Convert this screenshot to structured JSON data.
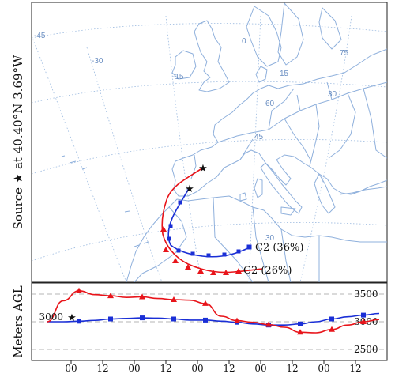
{
  "map": {
    "source_label": "Source ★ at 40.40°N 3.69°W",
    "graticule_labels": [
      "-45",
      "-30",
      "-15",
      "0",
      "15",
      "30",
      "75",
      "60",
      "45",
      "30"
    ],
    "colors": {
      "coast": "#8fb0dc",
      "graticule": "#9dbbe0",
      "label": "#6b8fc2",
      "red": "#e8141a",
      "blue": "#1a2fd6"
    },
    "trajectories": [
      {
        "name": "C2 (36%)",
        "color": "#1a2fd6",
        "marker": "square"
      },
      {
        "name": "C2 (26%)",
        "color": "#e8141a",
        "marker": "triangle"
      }
    ]
  },
  "chart_data": {
    "type": "line",
    "title": "",
    "ylabel": "Meters AGL",
    "xlabel": "",
    "x_ticks": [
      "00",
      "12",
      "00",
      "12",
      "00",
      "12",
      "00",
      "12",
      "00",
      "12"
    ],
    "start_label": "3000",
    "y_ticks": [
      3500,
      3000,
      2500
    ],
    "ylim": [
      2300,
      3700
    ],
    "x": [
      -18,
      -6,
      6,
      18,
      30,
      42,
      54,
      66,
      78,
      90,
      102,
      114,
      126,
      138,
      150,
      162,
      174,
      186,
      198,
      210,
      222,
      234
    ],
    "series": [
      {
        "name": "C2 (36%)",
        "color": "#1a2fd6",
        "marker": "square",
        "values": [
          3000,
          3000,
          3010,
          3025,
          3050,
          3060,
          3070,
          3065,
          3050,
          3030,
          3030,
          3010,
          2990,
          2960,
          2940,
          2940,
          2960,
          3000,
          3050,
          3090,
          3120,
          3150
        ]
      },
      {
        "name": "C2 (26%)",
        "color": "#e8141a",
        "marker": "triangle",
        "values": [
          3000,
          3380,
          3560,
          3490,
          3470,
          3440,
          3450,
          3420,
          3400,
          3390,
          3330,
          3100,
          3020,
          2990,
          2950,
          2900,
          2810,
          2800,
          2860,
          2940,
          3000,
          3040
        ]
      }
    ]
  }
}
